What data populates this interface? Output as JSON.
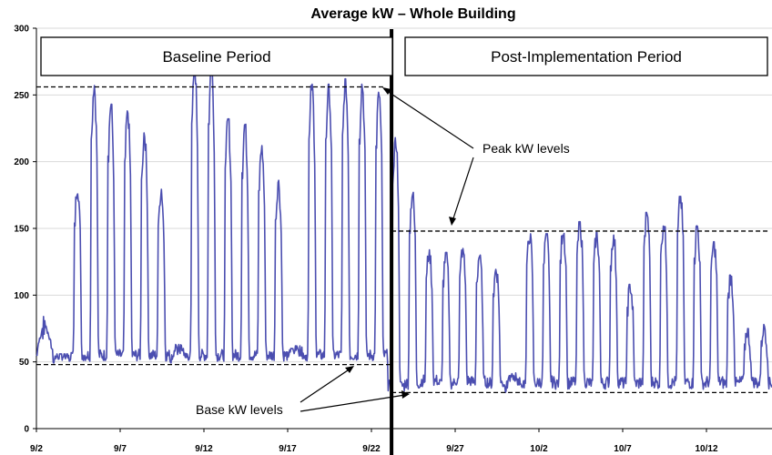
{
  "chart_data": {
    "type": "line",
    "title": "Average kW – Whole Building",
    "xlabel": "",
    "ylabel": "",
    "ylim": [
      0,
      300
    ],
    "yticks": [
      "0",
      "50",
      "100",
      "150",
      "200",
      "250",
      "300"
    ],
    "xticks": [
      "9/2",
      "9/7",
      "9/12",
      "9/17",
      "9/22",
      "9/27",
      "10/2",
      "10/7",
      "10/12"
    ],
    "grid": true,
    "series_color": "#4b4eb0",
    "periods": [
      {
        "label": "Baseline Period",
        "start_day": 0,
        "end_day": 21.2
      },
      {
        "label": "Post-Implementation Period",
        "start_day": 21.2,
        "end_day": 43.8
      }
    ],
    "reference_lines": [
      {
        "name": "baseline-peak",
        "value": 256,
        "from_day": 0,
        "to_day": 20.7
      },
      {
        "name": "baseline-base",
        "value": 48,
        "from_day": 0,
        "to_day": 21.2
      },
      {
        "name": "post-peak",
        "value": 148,
        "from_day": 21.2,
        "to_day": 43.8
      },
      {
        "name": "post-base",
        "value": 27,
        "from_day": 21.2,
        "to_day": 43.8
      }
    ],
    "annotations": [
      {
        "text": "Peak kW levels"
      },
      {
        "text": "Base kW levels"
      }
    ],
    "daily_peaks": [
      84,
      56,
      183,
      258,
      243,
      238,
      222,
      180,
      63,
      272,
      272,
      232,
      228,
      212,
      186,
      62,
      258,
      258,
      262,
      258,
      252,
      218,
      177,
      134,
      132,
      135,
      130,
      120,
      42,
      146,
      146,
      150,
      155,
      147,
      145,
      108,
      162,
      155,
      174,
      152,
      140,
      115,
      75,
      78
    ],
    "daily_bases": [
      55,
      52,
      55,
      55,
      55,
      55,
      55,
      55,
      52,
      55,
      55,
      55,
      55,
      55,
      55,
      55,
      55,
      55,
      55,
      55,
      55,
      32,
      34,
      36,
      34,
      36,
      35,
      34,
      30,
      34,
      35,
      34,
      35,
      34,
      35,
      34,
      35,
      34,
      35,
      34,
      35,
      34,
      35,
      34
    ]
  }
}
